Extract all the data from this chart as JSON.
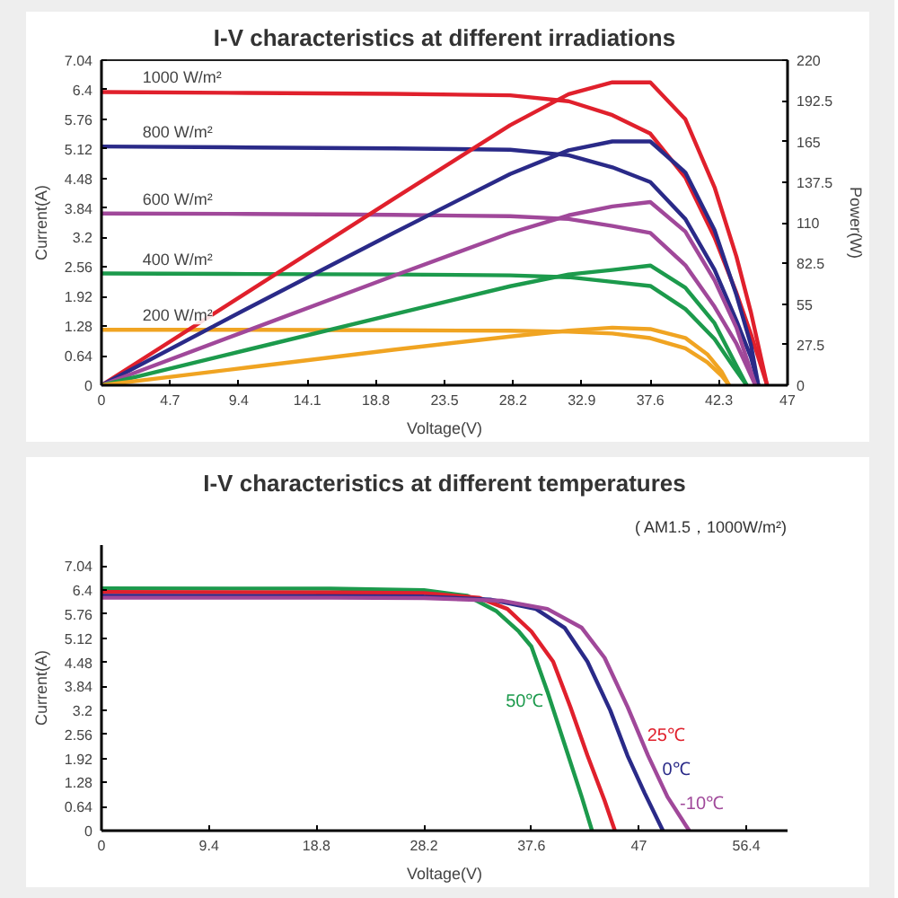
{
  "chart_data": [
    {
      "type": "line",
      "title": "I-V characteristics at different irradiations",
      "xlabel": "Voltage(V)",
      "ylabel": "Current(A)",
      "y2label": "Power(W)",
      "xlim": [
        0,
        47
      ],
      "xticks": [
        0,
        4.7,
        9.4,
        14.1,
        18.8,
        23.5,
        28.2,
        32.9,
        37.6,
        42.3,
        47
      ],
      "ylim": [
        0,
        7.04
      ],
      "yticks": [
        0,
        0.64,
        1.28,
        1.92,
        2.56,
        3.2,
        3.84,
        4.48,
        5.12,
        5.76,
        6.4,
        7.04
      ],
      "y2lim": [
        0,
        220
      ],
      "y2ticks": [
        0,
        27.5,
        55,
        82.5,
        110,
        137.5,
        165,
        192.5,
        220
      ],
      "grid": false,
      "series": [
        {
          "name": "1000 W/m²",
          "color": "#e0202c",
          "x": [
            0,
            10,
            20,
            28,
            32,
            35,
            37.6,
            40,
            42,
            43.5,
            44.5,
            45.6
          ],
          "values": [
            6.35,
            6.33,
            6.31,
            6.28,
            6.15,
            5.85,
            5.45,
            4.5,
            3.2,
            2.0,
            1.1,
            0
          ]
        },
        {
          "name": "800 W/m²",
          "color": "#2a2a88",
          "x": [
            0,
            10,
            20,
            28,
            32,
            35,
            37.6,
            40,
            42,
            43.5,
            44.5,
            45
          ],
          "values": [
            5.17,
            5.15,
            5.13,
            5.1,
            4.98,
            4.72,
            4.4,
            3.6,
            2.5,
            1.4,
            0.6,
            0
          ]
        },
        {
          "name": "600 W/m²",
          "color": "#a0489a",
          "x": [
            0,
            10,
            20,
            28,
            32,
            35,
            37.6,
            40,
            42,
            43.5,
            44.8
          ],
          "values": [
            3.72,
            3.71,
            3.69,
            3.66,
            3.6,
            3.45,
            3.3,
            2.6,
            1.7,
            0.9,
            0
          ]
        },
        {
          "name": "400 W/m²",
          "color": "#1c9a4c",
          "x": [
            0,
            10,
            20,
            28,
            32,
            35,
            37.6,
            40,
            42,
            43.3,
            44.2
          ],
          "values": [
            2.42,
            2.41,
            2.4,
            2.38,
            2.34,
            2.24,
            2.15,
            1.65,
            1.0,
            0.4,
            0
          ]
        },
        {
          "name": "200 W/m²",
          "color": "#f0a422",
          "x": [
            0,
            10,
            20,
            28,
            32,
            35,
            37.6,
            40,
            41.5,
            42.5,
            43
          ],
          "values": [
            1.2,
            1.2,
            1.19,
            1.18,
            1.16,
            1.12,
            1.02,
            0.8,
            0.5,
            0.2,
            0
          ]
        },
        {
          "axis": "y2",
          "color": "#e0202c",
          "x": [
            0,
            10,
            20,
            28,
            32,
            35,
            37.6,
            40,
            42,
            43.5,
            44.5,
            45.6
          ],
          "values": [
            0,
            63,
            126,
            176,
            197,
            205,
            205,
            180,
            134,
            87,
            49,
            0
          ]
        },
        {
          "axis": "y2",
          "color": "#2a2a88",
          "x": [
            0,
            10,
            20,
            28,
            32,
            35,
            37.6,
            40,
            42,
            43.5,
            44.5,
            45
          ],
          "values": [
            0,
            52,
            103,
            143,
            159,
            165,
            165,
            144,
            105,
            61,
            27,
            0
          ]
        },
        {
          "axis": "y2",
          "color": "#a0489a",
          "x": [
            0,
            10,
            20,
            28,
            32,
            35,
            37.6,
            40,
            42,
            43.5,
            44.8
          ],
          "values": [
            0,
            37,
            74,
            103,
            115,
            121,
            124,
            104,
            71,
            39,
            0
          ]
        },
        {
          "axis": "y2",
          "color": "#1c9a4c",
          "x": [
            0,
            10,
            20,
            28,
            32,
            35,
            37.6,
            40,
            42,
            43.3,
            44.2
          ],
          "values": [
            0,
            24,
            48,
            67,
            75,
            78,
            81,
            66,
            42,
            17,
            0
          ]
        },
        {
          "axis": "y2",
          "color": "#f0a422",
          "x": [
            0,
            10,
            20,
            28,
            32,
            35,
            37.6,
            40,
            41.5,
            42.5,
            43
          ],
          "values": [
            0,
            12,
            24,
            33,
            37,
            39,
            38,
            32,
            21,
            9,
            0
          ]
        }
      ]
    },
    {
      "type": "line",
      "title": "I-V characteristics at different temperatures",
      "subtitle": "( AM1.5，1000W/m²)",
      "xlabel": "Voltage(V)",
      "ylabel": "Current(A)",
      "xlim": [
        0,
        60
      ],
      "xticks": [
        0,
        9.4,
        18.8,
        28.2,
        37.6,
        47,
        56.4
      ],
      "ylim": [
        0,
        7.6
      ],
      "yticks": [
        0,
        0.64,
        1.28,
        1.92,
        2.56,
        3.2,
        3.84,
        4.48,
        5.12,
        5.76,
        6.4,
        7.04
      ],
      "grid": false,
      "series": [
        {
          "name": "50℃",
          "color": "#1c9a4c",
          "x": [
            0,
            20,
            28.2,
            32,
            34.5,
            36.5,
            37.6,
            39,
            40.5,
            42,
            42.9
          ],
          "values": [
            6.45,
            6.44,
            6.4,
            6.25,
            5.85,
            5.3,
            4.9,
            3.7,
            2.3,
            0.9,
            0
          ]
        },
        {
          "name": "25℃",
          "color": "#e0202c",
          "x": [
            0,
            20,
            28.2,
            33,
            35.5,
            37.6,
            39.5,
            41,
            42.5,
            44,
            44.9
          ],
          "values": [
            6.35,
            6.34,
            6.32,
            6.2,
            5.9,
            5.3,
            4.5,
            3.3,
            2.0,
            0.8,
            0
          ]
        },
        {
          "name": "0℃",
          "color": "#2a2a88",
          "x": [
            0,
            20,
            28.2,
            34,
            38,
            40.5,
            42.5,
            44.5,
            46,
            47.5,
            49.1
          ],
          "values": [
            6.25,
            6.24,
            6.23,
            6.15,
            5.9,
            5.4,
            4.5,
            3.2,
            2.0,
            1.0,
            0
          ]
        },
        {
          "name": "-10℃",
          "color": "#a0489a",
          "x": [
            0,
            20,
            28.2,
            35,
            39,
            42,
            44,
            46,
            47.8,
            49.5,
            51.4
          ],
          "values": [
            6.2,
            6.2,
            6.19,
            6.12,
            5.9,
            5.4,
            4.6,
            3.3,
            2.0,
            0.9,
            0
          ]
        }
      ]
    }
  ]
}
